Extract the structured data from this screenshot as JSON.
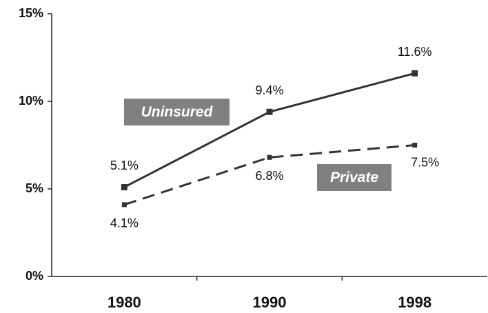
{
  "chart_data": {
    "type": "line",
    "categories": [
      "1980",
      "1990",
      "1998"
    ],
    "series": [
      {
        "name": "Uninsured",
        "color": "#333333",
        "style": "solid",
        "values": [
          5.1,
          9.4,
          11.6
        ],
        "value_labels": [
          "5.1%",
          "9.4%",
          "11.6%"
        ]
      },
      {
        "name": "Private",
        "color": "#333333",
        "style": "dashed",
        "values": [
          4.1,
          6.8,
          7.5
        ],
        "value_labels": [
          "4.1%",
          "6.8%",
          "7.5%"
        ]
      }
    ],
    "ylim": [
      0,
      15
    ],
    "yticks": [
      {
        "value": 0,
        "label": "0%"
      },
      {
        "value": 5,
        "label": "5%"
      },
      {
        "value": 10,
        "label": "10%"
      },
      {
        "value": 15,
        "label": "15%"
      }
    ],
    "grid": false
  }
}
